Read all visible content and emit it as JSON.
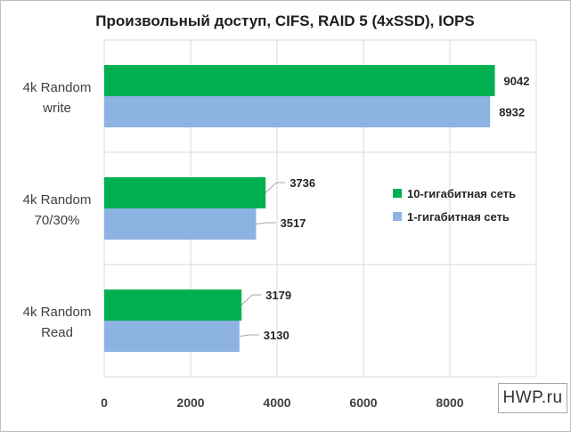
{
  "chart_data": {
    "type": "bar",
    "orientation": "horizontal",
    "title": "Произвольный доступ, CIFS, RAID 5 (4xSSD), IOPS",
    "categories": [
      [
        "4k Random",
        "write"
      ],
      [
        "4k Random",
        "70/30%"
      ],
      [
        "4k Random",
        "Read"
      ]
    ],
    "series": [
      {
        "name": "10-гигабитная сеть",
        "color": "#00b050",
        "values": [
          9042,
          3736,
          3179
        ]
      },
      {
        "name": "1-гигабитная сеть",
        "color": "#8db3e2",
        "values": [
          8932,
          3517,
          3130
        ]
      }
    ],
    "xlim": [
      0,
      10000
    ],
    "x_ticks": [
      "0",
      "2000",
      "4000",
      "6000",
      "8000"
    ],
    "grid": true,
    "legend_position": "right"
  },
  "watermark": "HWP.ru"
}
